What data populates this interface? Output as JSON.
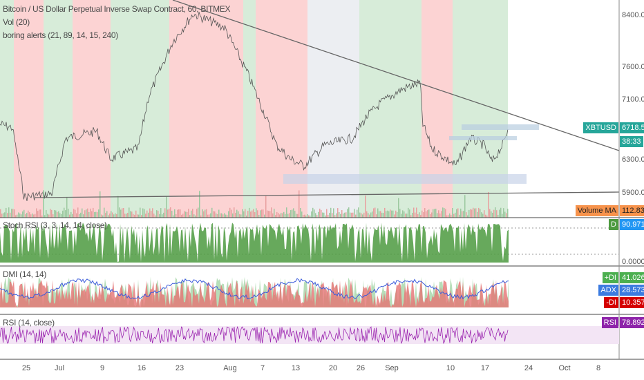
{
  "main": {
    "title": "Bitcoin / US Dollar Perpetual Inverse Swap Contract, 60, BITMEX",
    "indicators": [
      "Vol (20)",
      "boring alerts (21, 89, 14, 15, 240)"
    ]
  },
  "price_axis": [
    "8400.0",
    "7600.0",
    "7100.0",
    "6300.0",
    "5900.0"
  ],
  "price_tag": {
    "symbol": "XBTUSD",
    "price": "6718.5",
    "countdown": "38:33",
    "color": "#26a69a"
  },
  "volume_tag": {
    "label": "Volume MA",
    "value": "112.83M",
    "color": "#f7934c"
  },
  "stoch": {
    "legend": "Stoch RSI (3, 3, 14, 14, close)",
    "tag": "D",
    "value": "90.9716",
    "axis_zero": "0.0000"
  },
  "dmi": {
    "legend": "DMI (14, 14)",
    "plus_label": "+DI",
    "plus_value": "41.0269",
    "adx_label": "ADX",
    "adx_value": "28.5733",
    "minus_label": "-DI",
    "minus_value": "10.3572"
  },
  "rsi": {
    "legend": "RSI (14, close)",
    "label": "RSI",
    "value": "78.8921"
  },
  "x_axis": [
    "25",
    "Jul",
    "9",
    "16",
    "23",
    "Aug",
    "7",
    "13",
    "20",
    "26",
    "Sep",
    "10",
    "17",
    "24",
    "Oct",
    "8"
  ],
  "colors": {
    "up_band": "#d7ecd9",
    "down_band": "#fcd3d3",
    "neutral_band": "#eceef2",
    "stoch": "#4c9a3f",
    "rsi": "#9c27b0"
  }
}
